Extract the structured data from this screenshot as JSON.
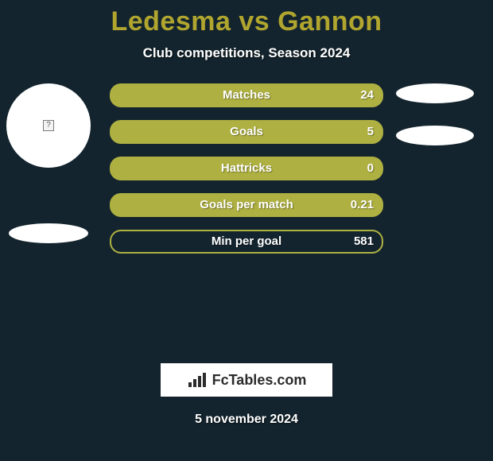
{
  "title": "Ledesma vs Gannon",
  "subtitle": "Club competitions, Season 2024",
  "branding": "FcTables.com",
  "date": "5 november 2024",
  "colors": {
    "background": "#13242e",
    "bar_fill": "#aeb041",
    "bar_border": "#aeb041",
    "title_color": "#b0a52e",
    "text_color": "#ffffff"
  },
  "left_player": {
    "has_avatar": true
  },
  "right_player": {
    "has_avatar": false
  },
  "stats": [
    {
      "label": "Matches",
      "value": "24",
      "fill": 1.0
    },
    {
      "label": "Goals",
      "value": "5",
      "fill": 1.0
    },
    {
      "label": "Hattricks",
      "value": "0",
      "fill": 1.0
    },
    {
      "label": "Goals per match",
      "value": "0.21",
      "fill": 0.94
    },
    {
      "label": "Min per goal",
      "value": "581",
      "fill": 0.0
    }
  ]
}
